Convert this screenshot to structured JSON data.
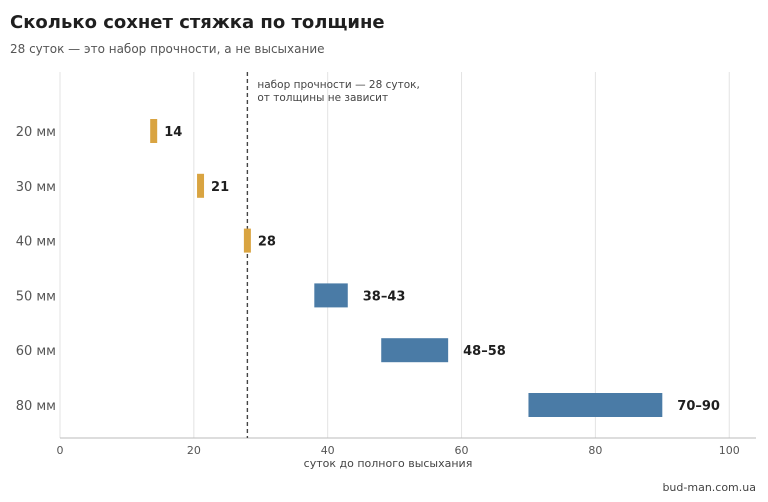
{
  "header": {
    "title": "Сколько сохнет стяжка по толщине",
    "subtitle": "28 суток — это набор прочности, а не высыхание"
  },
  "source": "bud-man.com.ua",
  "colors": {
    "short": "#D9A441",
    "long": "#4A7BA6",
    "grid": "#e3e3e3",
    "reference": "#444444"
  },
  "chart_data": {
    "type": "bar",
    "orientation": "horizontal",
    "title": "Сколько сохнет стяжка по толщине",
    "subtitle": "28 суток — это набор прочности, а не высыхание",
    "xlabel": "суток до полного высыхания",
    "ylabel": "",
    "xlim": [
      0,
      104
    ],
    "xticks": [
      0,
      20,
      40,
      60,
      80,
      100
    ],
    "grid": true,
    "categories": [
      "20 мм",
      "30 мм",
      "40 мм",
      "50 мм",
      "60 мм",
      "80 мм"
    ],
    "rows": [
      {
        "category": "20 мм",
        "min": 14,
        "max": 14,
        "label": "14"
      },
      {
        "category": "30 мм",
        "min": 21,
        "max": 21,
        "label": "21"
      },
      {
        "category": "40 мм",
        "min": 28,
        "max": 28,
        "label": "28"
      },
      {
        "category": "50 мм",
        "min": 38,
        "max": 43,
        "label": "38–43"
      },
      {
        "category": "60 мм",
        "min": 48,
        "max": 58,
        "label": "48–58"
      },
      {
        "category": "80 мм",
        "min": 70,
        "max": 90,
        "label": "70–90"
      }
    ],
    "reference_line": {
      "x": 28,
      "annotation": [
        "набор прочности — 28 суток,",
        "от толщины не зависит"
      ]
    }
  }
}
